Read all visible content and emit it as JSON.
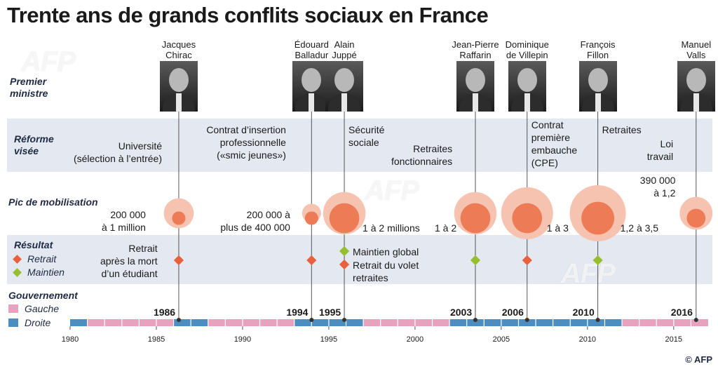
{
  "title": "Trente ans de grands conflits sociaux en France",
  "row_labels": {
    "premier": "Premier\nministre",
    "reforme": "Réforme\nvisée",
    "pic": "Pic de mobilisation",
    "resultat": "Résultat",
    "gouvernement": "Gouvernement"
  },
  "legend": {
    "retrait": "Retrait",
    "maintien": "Maintien",
    "gauche": "Gauche",
    "droite": "Droite"
  },
  "colors": {
    "retrait": "#e8613c",
    "maintien": "#95bf2f",
    "gauche": "#e7a3bd",
    "droite": "#4c8ec0",
    "bubble_outer": "#f7c3b1",
    "bubble_inner": "#ec7b56",
    "band": "#e3e8f1"
  },
  "watermark": "AFP",
  "credit": "AFP",
  "chart_data": {
    "type": "timeline",
    "x_axis": {
      "min": 1980,
      "max": 2017,
      "ticks": [
        1980,
        1985,
        1990,
        1995,
        2000,
        2005,
        2010,
        2015
      ]
    },
    "governments": [
      {
        "start": 1980,
        "end": 1981,
        "side": "droite"
      },
      {
        "start": 1981,
        "end": 1986,
        "side": "gauche"
      },
      {
        "start": 1986,
        "end": 1988,
        "side": "droite"
      },
      {
        "start": 1988,
        "end": 1993,
        "side": "gauche"
      },
      {
        "start": 1993,
        "end": 1997,
        "side": "droite"
      },
      {
        "start": 1997,
        "end": 2002,
        "side": "gauche"
      },
      {
        "start": 2002,
        "end": 2012,
        "side": "droite"
      },
      {
        "start": 2012,
        "end": 2017,
        "side": "gauche"
      }
    ],
    "events": [
      {
        "year": 1986.3,
        "year_label": "1986",
        "pm": "Jacques\nChirac",
        "reforme": "Université\n(sélection à l’entrée)",
        "pic": "200 000\nà 1 million",
        "resultat": "retrait",
        "resultat_text": "Retrait\naprès la mort\nd’un étudiant",
        "mob_min": 200000,
        "mob_max": 1000000
      },
      {
        "year": 1994.0,
        "year_label": "1994",
        "pm": "Édouard\nBalladur",
        "reforme": "Contrat d’insertion\nprofessionnelle\n(«smic jeunes»)",
        "pic": "200 000 à\nplus de 400 000",
        "resultat": "retrait",
        "resultat_text": "",
        "mob_min": 200000,
        "mob_max": 400000
      },
      {
        "year": 1995.9,
        "year_label": "1995",
        "pm": "Alain\nJuppé",
        "reforme": "Sécurité\nsociale",
        "pic": "1 à 2 millions",
        "resultat": "maintien",
        "resultat_text": "Maintien global",
        "resultat2": "retrait",
        "resultat2_text": "Retrait du volet\nretraites",
        "mob_min": 1000000,
        "mob_max": 2000000
      },
      {
        "year": 2003.5,
        "year_label": "2003",
        "pm": "Jean-Pierre\nRaffarin",
        "reforme": "Retraites\nfonctionnaires",
        "pic": "1 à 2",
        "resultat": "maintien",
        "resultat_text": "",
        "mob_min": 1000000,
        "mob_max": 2000000
      },
      {
        "year": 2006.5,
        "year_label": "2006",
        "pm": "Dominique\nde Villepin",
        "reforme": "Contrat\npremière\nembauche\n(CPE)",
        "pic": "1 à 3",
        "resultat": "retrait",
        "resultat_text": "",
        "mob_min": 1000000,
        "mob_max": 3000000
      },
      {
        "year": 2010.6,
        "year_label": "2010",
        "pm": "François\nFillon",
        "reforme": "Retraites",
        "pic": "1,2 à 3,5",
        "resultat": "maintien",
        "resultat_text": "",
        "mob_min": 1200000,
        "mob_max": 3500000
      },
      {
        "year": 2016.3,
        "year_label": "2016",
        "pm": "Manuel\nValls",
        "reforme": "Loi\ntravail",
        "pic": "390 000\nà 1,2",
        "resultat": "",
        "resultat_text": "",
        "mob_min": 390000,
        "mob_max": 1200000
      }
    ]
  }
}
